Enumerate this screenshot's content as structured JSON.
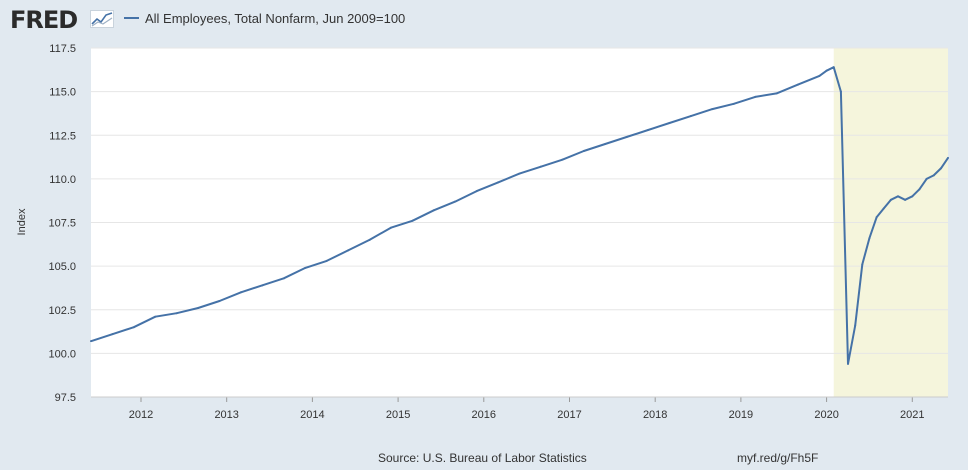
{
  "header": {
    "logo_text": "FRED",
    "logo_icon": "line-chart-icon",
    "legend_label": "All Employees, Total Nonfarm, Jun 2009=100"
  },
  "footer": {
    "source": "Source: U.S. Bureau of Labor Statistics",
    "link": "myf.red/g/Fh5F"
  },
  "colors": {
    "background": "#e1e9f0",
    "plot_background": "#ffffff",
    "series_line": "#4572a7",
    "recession_shading": "#f5f5dc",
    "gridline": "#e6e6e6"
  },
  "chart_data": {
    "type": "line",
    "title": "",
    "xlabel": "",
    "ylabel": "Index",
    "grid": true,
    "legend": "top-left",
    "ylim": [
      97.5,
      117.5
    ],
    "xlim": [
      "2011-06",
      "2021-06"
    ],
    "y_ticks": [
      "97.5",
      "100.0",
      "102.5",
      "105.0",
      "107.5",
      "110.0",
      "112.5",
      "115.0",
      "117.5"
    ],
    "x_ticks": [
      "2012",
      "2013",
      "2014",
      "2015",
      "2016",
      "2017",
      "2018",
      "2019",
      "2020",
      "2021"
    ],
    "recession_shading": {
      "start": "2020-02",
      "end": "2021-06"
    },
    "series": [
      {
        "name": "All Employees, Total Nonfarm, Jun 2009=100",
        "x": [
          "2011-06",
          "2011-09",
          "2011-12",
          "2012-03",
          "2012-06",
          "2012-09",
          "2012-12",
          "2013-03",
          "2013-06",
          "2013-09",
          "2013-12",
          "2014-03",
          "2014-06",
          "2014-09",
          "2014-12",
          "2015-03",
          "2015-06",
          "2015-09",
          "2015-12",
          "2016-03",
          "2016-06",
          "2016-09",
          "2016-12",
          "2017-03",
          "2017-06",
          "2017-09",
          "2017-12",
          "2018-03",
          "2018-06",
          "2018-09",
          "2018-12",
          "2019-03",
          "2019-06",
          "2019-09",
          "2019-12",
          "2020-01",
          "2020-02",
          "2020-03",
          "2020-04",
          "2020-05",
          "2020-06",
          "2020-07",
          "2020-08",
          "2020-09",
          "2020-10",
          "2020-11",
          "2020-12",
          "2021-01",
          "2021-02",
          "2021-03",
          "2021-04",
          "2021-05",
          "2021-06"
        ],
        "values": [
          100.7,
          101.1,
          101.5,
          102.1,
          102.3,
          102.6,
          103.0,
          103.5,
          103.9,
          104.3,
          104.9,
          105.3,
          105.9,
          106.5,
          107.2,
          107.6,
          108.2,
          108.7,
          109.3,
          109.8,
          110.3,
          110.7,
          111.1,
          111.6,
          112.0,
          112.4,
          112.8,
          113.2,
          113.6,
          114.0,
          114.3,
          114.7,
          114.9,
          115.4,
          115.9,
          116.2,
          116.4,
          115.0,
          99.4,
          101.6,
          105.1,
          106.6,
          107.8,
          108.3,
          108.8,
          109.0,
          108.8,
          109.0,
          109.4,
          110.0,
          110.2,
          110.6,
          111.2
        ]
      }
    ]
  }
}
